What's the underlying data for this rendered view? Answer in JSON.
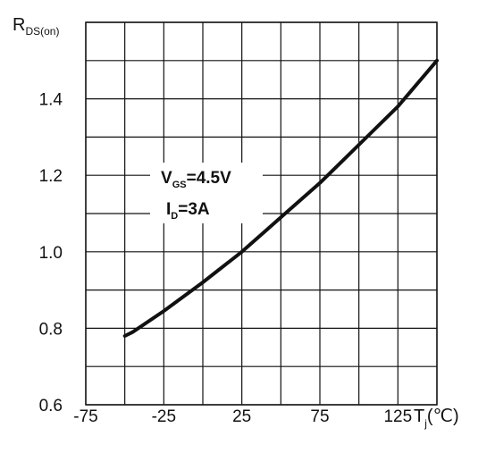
{
  "chart_data": {
    "type": "line",
    "ylabel": {
      "main": "R",
      "sub": "DS(on)"
    },
    "xlabel": {
      "main": "T",
      "sub": "j",
      "unit": "(℃)"
    },
    "xlim": [
      -75,
      150
    ],
    "ylim": [
      0.6,
      1.6
    ],
    "x_ticks": [
      -75,
      -50,
      -25,
      0,
      25,
      50,
      75,
      100,
      125,
      150
    ],
    "x_tick_labels": [
      "-75",
      "-25",
      "25",
      "75",
      "125"
    ],
    "x_tick_label_values": [
      -75,
      -25,
      25,
      75,
      125
    ],
    "y_ticks": [
      0.6,
      0.7,
      0.8,
      0.9,
      1.0,
      1.1,
      1.2,
      1.3,
      1.4,
      1.5,
      1.6
    ],
    "y_tick_labels": [
      "0.6",
      "0.8",
      "1.0",
      "1.2",
      "1.4"
    ],
    "y_tick_label_values": [
      0.6,
      0.8,
      1.0,
      1.2,
      1.4
    ],
    "grid": true,
    "annotations": [
      {
        "main": "V",
        "sub": "GS",
        "value": "=4.5V"
      },
      {
        "main": "I",
        "sub": "D",
        "value": "=3A"
      }
    ],
    "series": [
      {
        "x": [
          -50,
          -45,
          -25,
          0,
          25,
          50,
          75,
          100,
          125,
          150
        ],
        "y": [
          0.78,
          0.79,
          0.845,
          0.92,
          1.0,
          1.09,
          1.18,
          1.28,
          1.38,
          1.5
        ]
      }
    ]
  }
}
